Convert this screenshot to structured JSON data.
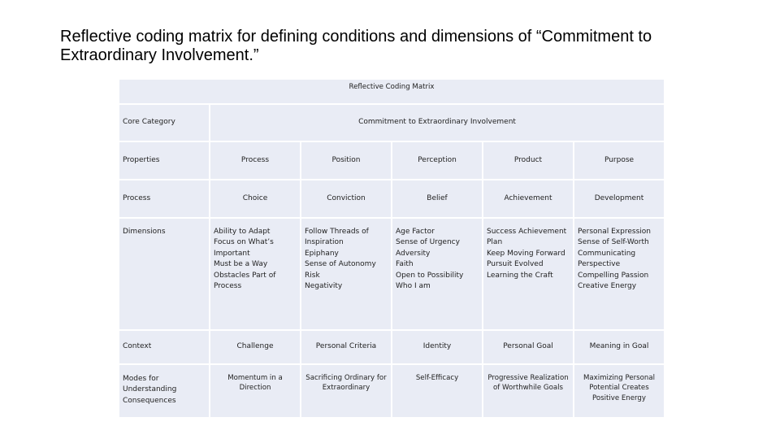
{
  "slide": {
    "title_lines": [
      "Reflective coding matrix for defining conditions and dimensions of “Commitment to",
      "Extraordinary Involvement.”"
    ]
  },
  "matrix": {
    "header": "Reflective Coding Matrix",
    "core_category_label": "Core Category",
    "core_category_value": "Commitment to Extraordinary Involvement",
    "rows": [
      {
        "label": "Properties",
        "cells": [
          [
            "Process"
          ],
          [
            "Position"
          ],
          [
            "Perception"
          ],
          [
            "Product"
          ],
          [
            "Purpose"
          ]
        ]
      },
      {
        "label": "Process",
        "cells": [
          [
            "Choice"
          ],
          [
            "Conviction"
          ],
          [
            "Belief"
          ],
          [
            "Achievement"
          ],
          [
            "Development"
          ]
        ]
      },
      {
        "label": "Dimensions",
        "cells": [
          [
            "Ability to Adapt",
            "Focus on What’s",
            "Important",
            "Must be a Way",
            "Obstacles Part of",
            "Process"
          ],
          [
            "Follow Threads of",
            "Inspiration",
            "Epiphany",
            "Sense of Autonomy",
            "Risk",
            "Negativity"
          ],
          [
            "Age Factor",
            "Sense of Urgency",
            "Adversity",
            "Faith",
            "Open to Possibility",
            "Who I am"
          ],
          [
            "Success Achievement",
            "Plan",
            "Keep Moving Forward",
            "Pursuit Evolved",
            "Learning the Craft"
          ],
          [
            "Personal Expression",
            "Sense of Self-Worth",
            "Communicating",
            "Perspective",
            "Compelling Passion",
            "Creative Energy"
          ]
        ]
      },
      {
        "label": "Context",
        "cells": [
          [
            "Challenge"
          ],
          [
            "Personal Criteria"
          ],
          [
            "Identity"
          ],
          [
            "Personal Goal"
          ],
          [
            "Meaning in Goal"
          ]
        ]
      },
      {
        "label_lines": [
          "Modes for",
          "Understanding",
          "Consequences"
        ],
        "cells": [
          [
            "Momentum in a",
            "Direction"
          ],
          [
            "Sacrificing Ordinary for",
            "Extraordinary"
          ],
          [
            "Self-Efficacy"
          ],
          [
            "Progressive Realization",
            "of Worthwhile Goals"
          ],
          [
            "Maximizing Personal",
            "Potential Creates",
            "Positive Energy"
          ]
        ]
      }
    ]
  }
}
